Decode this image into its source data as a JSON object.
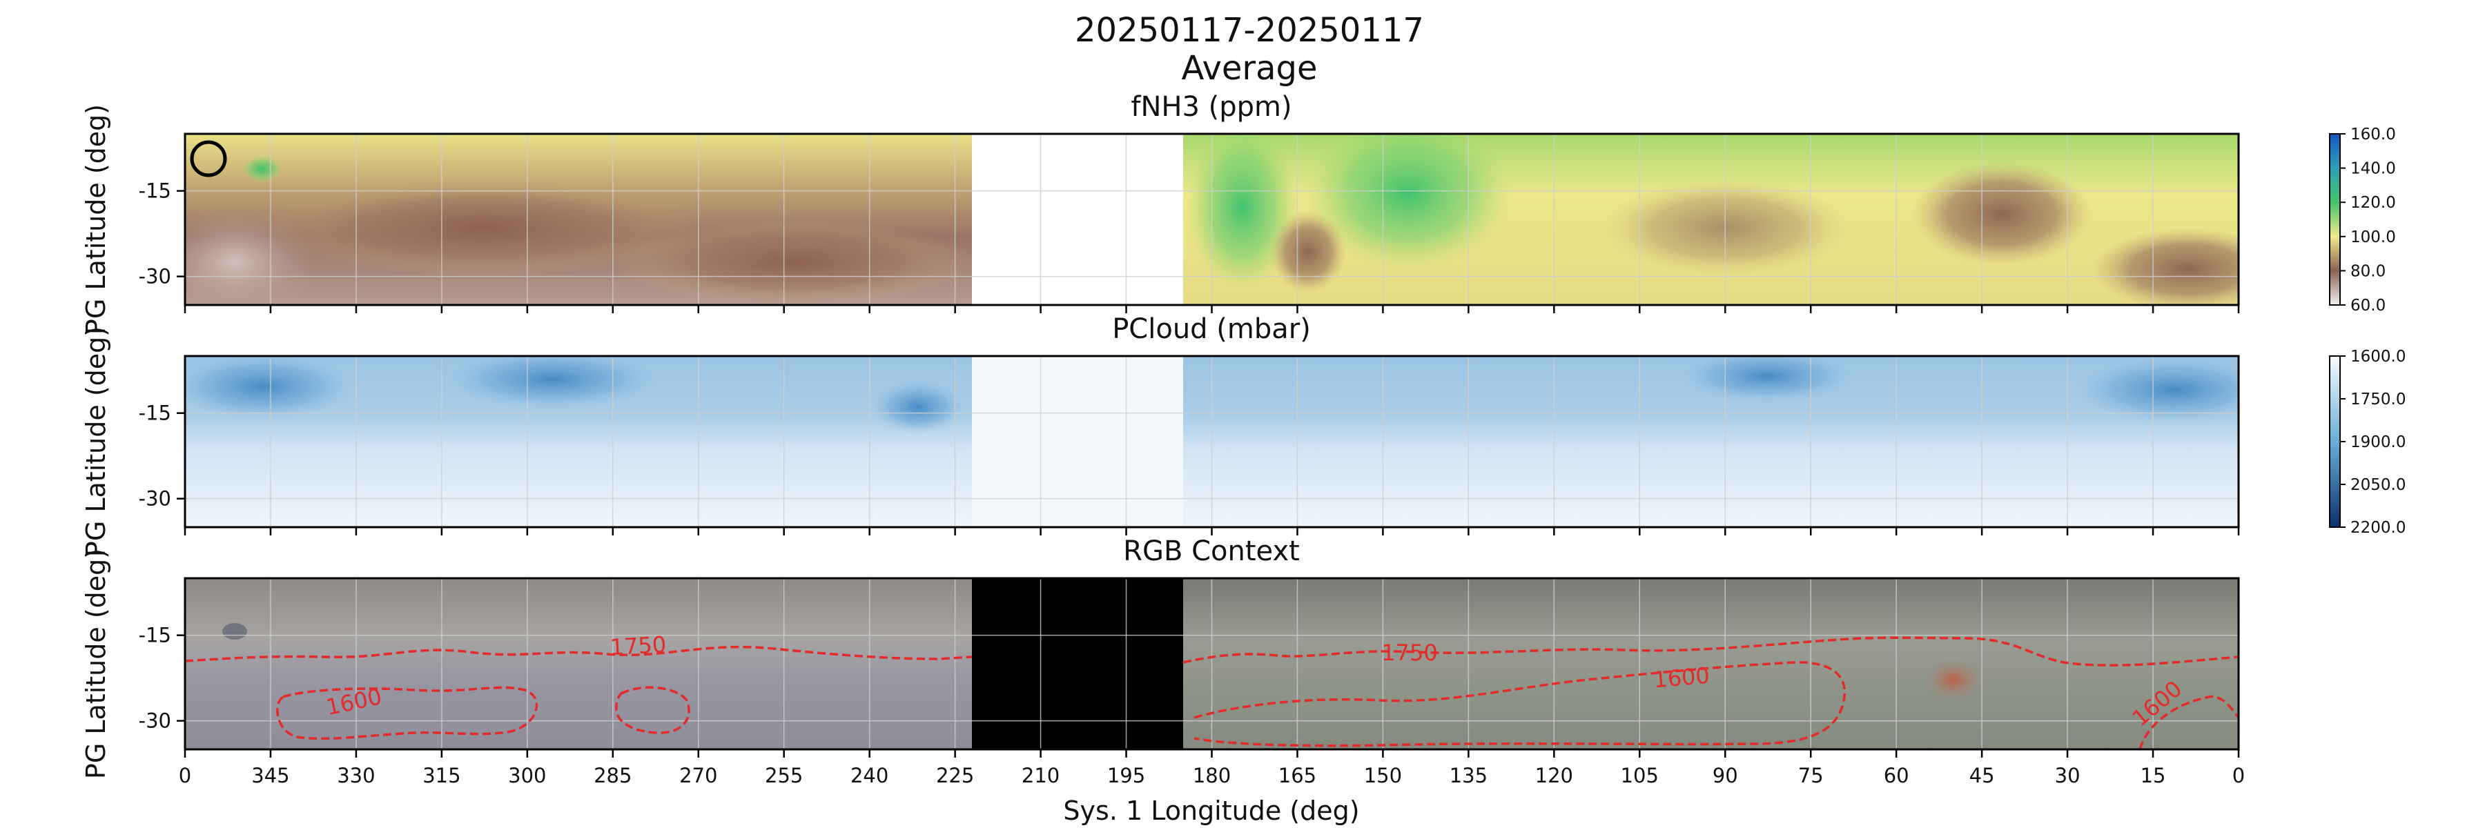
{
  "figure": {
    "title_line1": "20250117-20250117",
    "title_line2": "Average",
    "xlabel": "Sys. 1 Longitude (deg)"
  },
  "panels": [
    {
      "title": "fNH3 (ppm)",
      "ylabel": "PG Latitude (deg)",
      "yticks": [
        "-15",
        "-30"
      ]
    },
    {
      "title": "PCloud (mbar)",
      "ylabel": "PG Latitude (deg)",
      "yticks": [
        "-15",
        "-30"
      ]
    },
    {
      "title": "RGB Context",
      "ylabel": "PG Latitude (deg)",
      "yticks": [
        "-15",
        "-30"
      ]
    }
  ],
  "xticks": [
    "0",
    "345",
    "330",
    "315",
    "300",
    "285",
    "270",
    "255",
    "240",
    "225",
    "210",
    "195",
    "180",
    "165",
    "150",
    "135",
    "120",
    "105",
    "90",
    "75",
    "60",
    "45",
    "30",
    "15",
    "0"
  ],
  "colorbars": {
    "fnh3": {
      "ticks": [
        "160.0",
        "140.0",
        "120.0",
        "100.0",
        "80.0",
        "60.0"
      ],
      "range": [
        60,
        160
      ]
    },
    "pcloud": {
      "ticks": [
        "1600.0",
        "1750.0",
        "1900.0",
        "2050.0",
        "2200.0"
      ],
      "range": [
        1600,
        2200
      ]
    }
  },
  "contour_labels": [
    "1750",
    "1600",
    "1750",
    "1600",
    "1600"
  ],
  "chart_data": [
    {
      "type": "heatmap",
      "title": "fNH3 (ppm)",
      "xlabel": "Sys. 1 Longitude (deg)",
      "ylabel": "PG Latitude (deg)",
      "xlim": [
        360,
        0
      ],
      "ylim": [
        -35,
        -5
      ],
      "no_data_longitudes": [
        222,
        182
      ],
      "marker": {
        "longitude": 357,
        "latitude": -9,
        "shape": "circle"
      },
      "features": [
        {
          "longitude": 170,
          "latitude": -25,
          "fNH3": 70
        },
        {
          "longitude": 85,
          "latitude": -24,
          "fNH3": 80
        },
        {
          "longitude": 45,
          "latitude": -22,
          "fNH3": 70
        },
        {
          "longitude": 152,
          "latitude": -12,
          "fNH3": 125
        }
      ],
      "colorbar": {
        "range": [
          60,
          160
        ],
        "ticks": [
          60,
          80,
          100,
          120,
          140,
          160
        ]
      }
    },
    {
      "type": "heatmap",
      "title": "PCloud (mbar)",
      "xlabel": "Sys. 1 Longitude (deg)",
      "ylabel": "PG Latitude (deg)",
      "xlim": [
        360,
        0
      ],
      "ylim": [
        -35,
        -5
      ],
      "no_data_longitudes": [
        222,
        182
      ],
      "features": [
        {
          "longitude": 295,
          "latitude": -10,
          "PCloud": 2050
        },
        {
          "longitude": 345,
          "latitude": -12,
          "PCloud": 2000
        },
        {
          "longitude": 230,
          "latitude": -17,
          "PCloud": 1950
        },
        {
          "longitude": 80,
          "latitude": -10,
          "PCloud": 2000
        },
        {
          "longitude": 10,
          "latitude": -12,
          "PCloud": 2050
        }
      ],
      "colorbar": {
        "range": [
          1600,
          2200
        ],
        "ticks": [
          1600,
          1750,
          1900,
          2050,
          2200
        ]
      }
    },
    {
      "type": "heatmap",
      "title": "RGB Context",
      "xlabel": "Sys. 1 Longitude (deg)",
      "ylabel": "PG Latitude (deg)",
      "xlim": [
        360,
        0
      ],
      "ylim": [
        -35,
        -5
      ],
      "no_data_longitudes": [
        222,
        182
      ],
      "contours": [
        {
          "level": 1750,
          "label": "1750"
        },
        {
          "level": 1600,
          "label": "1600"
        }
      ]
    }
  ]
}
